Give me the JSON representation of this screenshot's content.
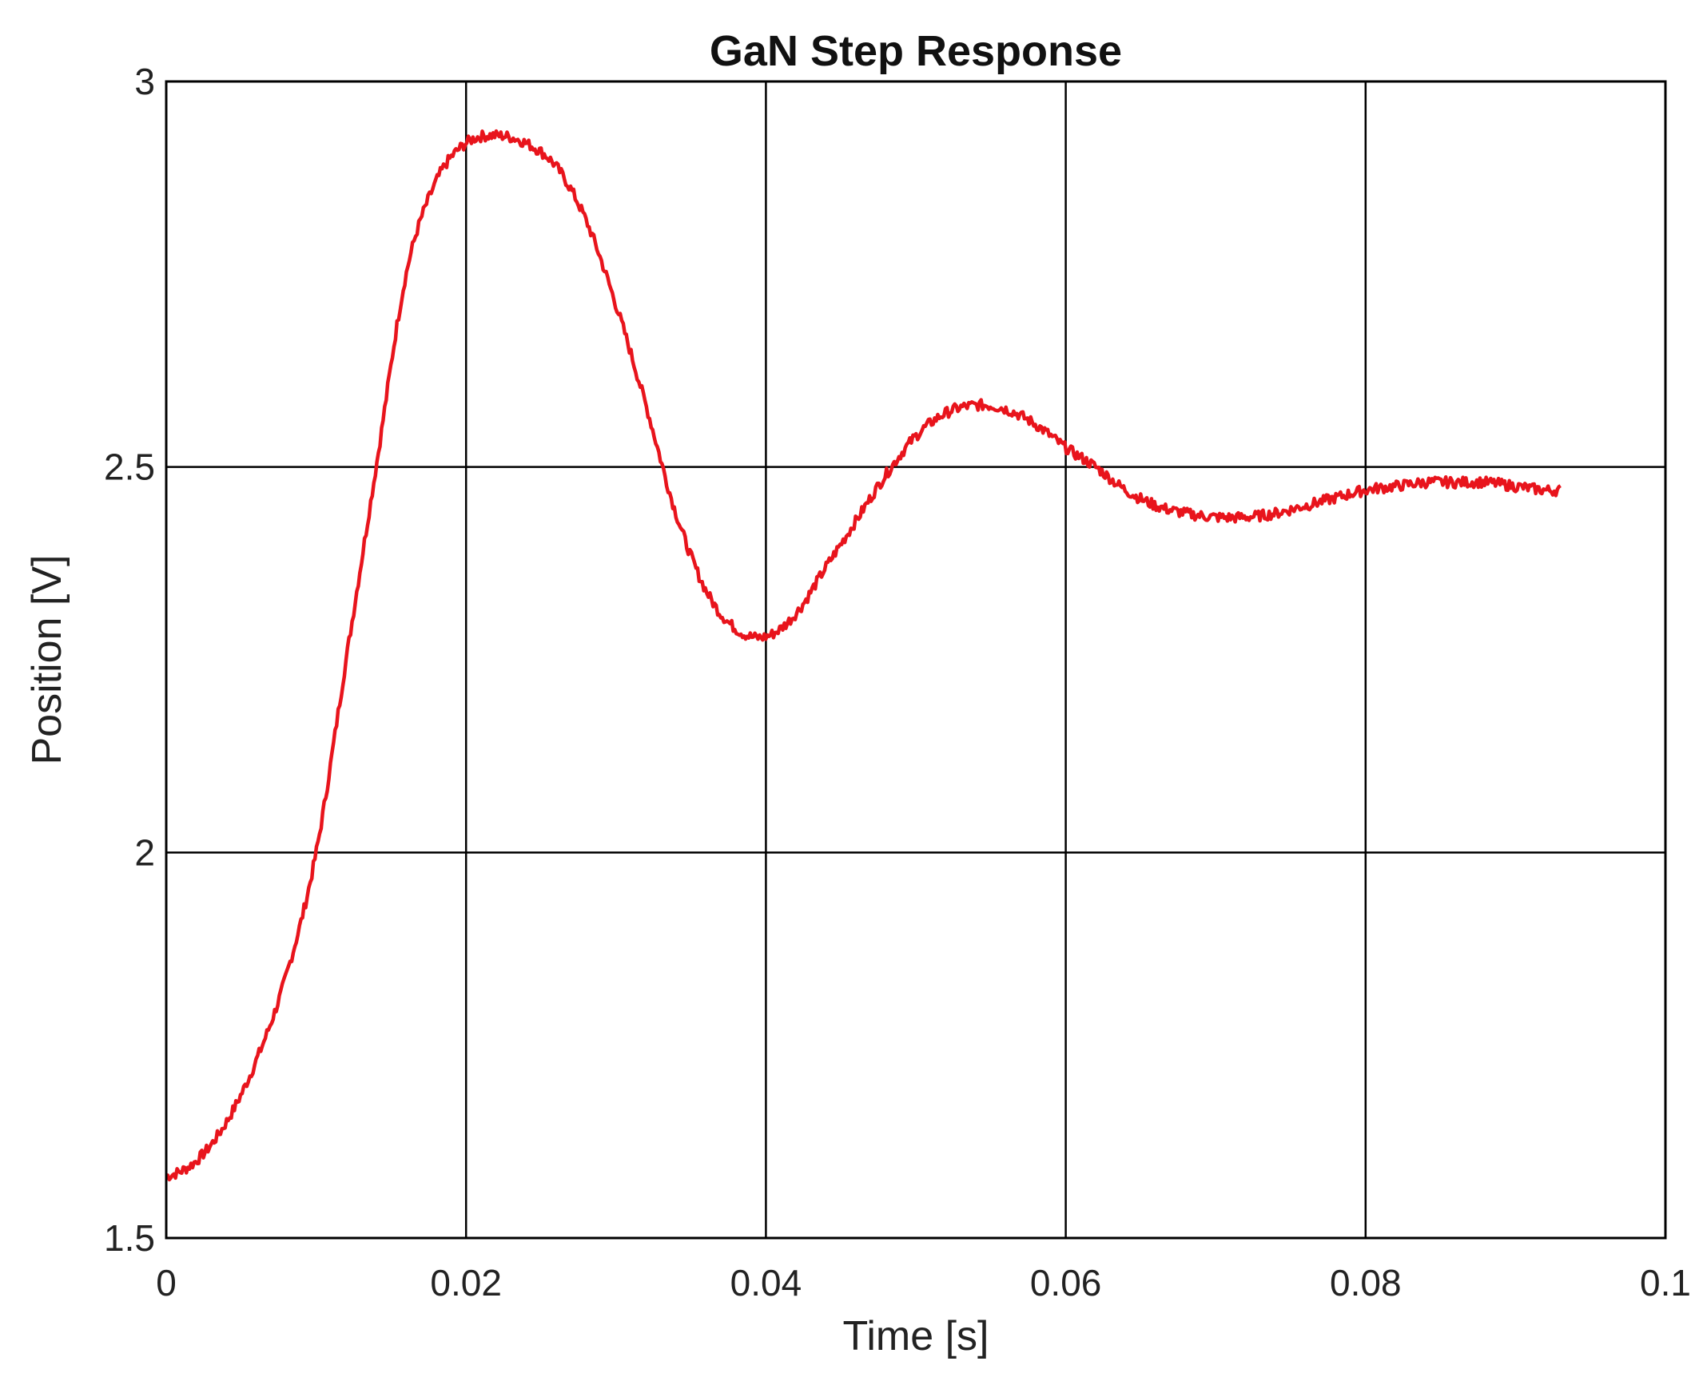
{
  "chart_data": {
    "type": "line",
    "title": "GaN Step Response",
    "xlabel": "Time [s]",
    "ylabel": "Position [V]",
    "xlim": [
      0,
      0.1
    ],
    "ylim": [
      1.5,
      3.0
    ],
    "x_ticks": [
      0,
      0.02,
      0.04,
      0.06,
      0.08,
      0.1
    ],
    "x_tick_labels": [
      "0",
      "0.02",
      "0.04",
      "0.06",
      "0.08",
      "0.1"
    ],
    "y_ticks": [
      1.5,
      2.0,
      2.5,
      3.0
    ],
    "y_tick_labels": [
      "1.5",
      "2",
      "2.5",
      "3"
    ],
    "grid": true,
    "legend": "none",
    "series": [
      {
        "color": "#e8141c",
        "x": [
          0,
          0.002,
          0.004,
          0.006,
          0.008,
          0.01,
          0.012,
          0.014,
          0.016,
          0.018,
          0.02,
          0.022,
          0.024,
          0.026,
          0.028,
          0.03,
          0.032,
          0.034,
          0.036,
          0.038,
          0.04,
          0.042,
          0.044,
          0.046,
          0.048,
          0.05,
          0.052,
          0.054,
          0.056,
          0.058,
          0.06,
          0.062,
          0.064,
          0.066,
          0.068,
          0.07,
          0.072,
          0.074,
          0.076,
          0.078,
          0.08,
          0.082,
          0.084,
          0.086,
          0.088,
          0.09,
          0.092,
          0.093
        ],
        "y": [
          1.58,
          1.6,
          1.65,
          1.73,
          1.84,
          2.0,
          2.25,
          2.5,
          2.75,
          2.87,
          2.92,
          2.93,
          2.92,
          2.89,
          2.82,
          2.71,
          2.58,
          2.44,
          2.34,
          2.29,
          2.28,
          2.31,
          2.37,
          2.43,
          2.49,
          2.54,
          2.57,
          2.58,
          2.575,
          2.555,
          2.525,
          2.5,
          2.47,
          2.45,
          2.44,
          2.435,
          2.435,
          2.44,
          2.45,
          2.46,
          2.47,
          2.475,
          2.48,
          2.48,
          2.48,
          2.475,
          2.47,
          2.47
        ]
      }
    ]
  }
}
